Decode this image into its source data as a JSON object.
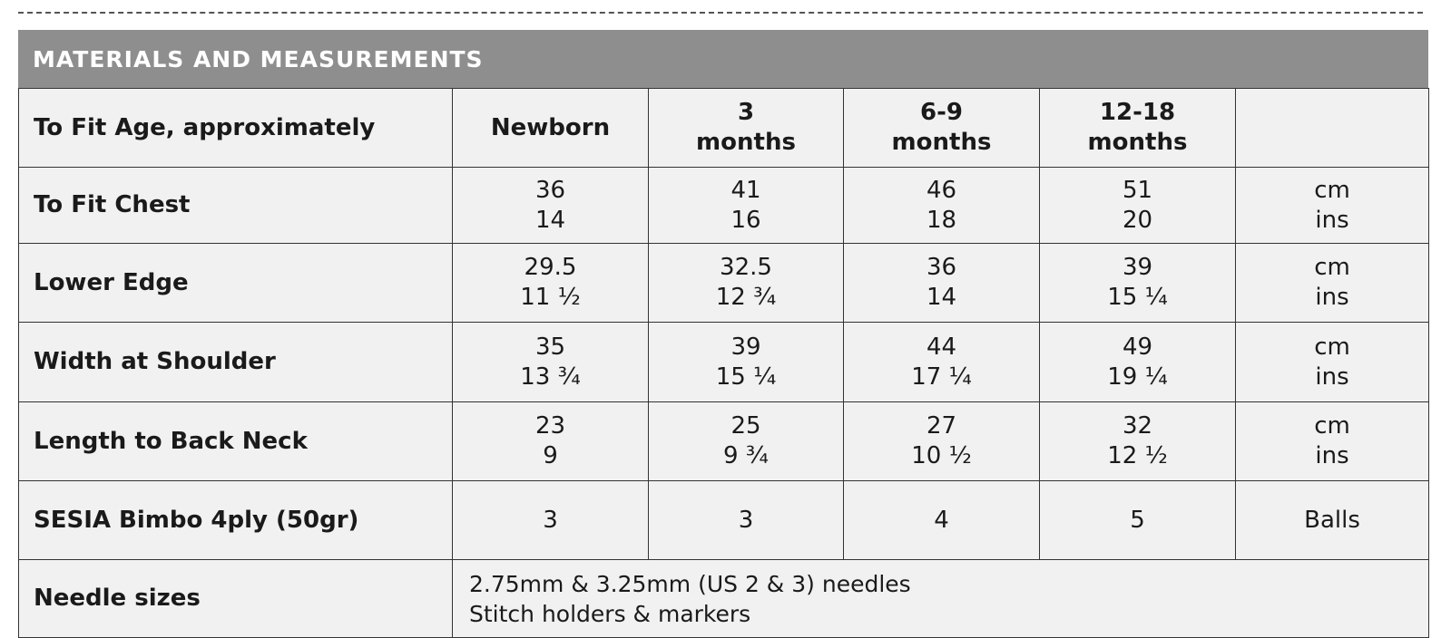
{
  "table": {
    "title": "MATERIALS AND MEASUREMENTS",
    "header": {
      "label": "To Fit Age, approximately",
      "sizes": [
        [
          "Newborn"
        ],
        [
          "3",
          "months"
        ],
        [
          "6-9",
          "months"
        ],
        [
          "12-18",
          "months"
        ]
      ]
    },
    "rows": [
      {
        "label": "To Fit Chest",
        "cells": [
          [
            "36",
            "14"
          ],
          [
            "41",
            "16"
          ],
          [
            "46",
            "18"
          ],
          [
            "51",
            "20"
          ]
        ],
        "units": [
          "cm",
          "ins"
        ]
      },
      {
        "label": "Lower Edge",
        "cells": [
          [
            "29.5",
            "11 ½"
          ],
          [
            "32.5",
            "12 ¾"
          ],
          [
            "36",
            "14"
          ],
          [
            "39",
            "15 ¼"
          ]
        ],
        "units": [
          "cm",
          "ins"
        ]
      },
      {
        "label": "Width at Shoulder",
        "cells": [
          [
            "35",
            "13 ¾"
          ],
          [
            "39",
            "15 ¼"
          ],
          [
            "44",
            "17 ¼"
          ],
          [
            "49",
            "19 ¼"
          ]
        ],
        "units": [
          "cm",
          "ins"
        ]
      },
      {
        "label": "Length to Back Neck",
        "cells": [
          [
            "23",
            "9"
          ],
          [
            "25",
            "9 ¾"
          ],
          [
            "27",
            "10 ½"
          ],
          [
            "32",
            "12 ½"
          ]
        ],
        "units": [
          "cm",
          "ins"
        ]
      },
      {
        "label": "SESIA Bimbo 4ply (50gr)",
        "cells": [
          [
            "3"
          ],
          [
            "3"
          ],
          [
            "4"
          ],
          [
            "5"
          ]
        ],
        "units": [
          "Balls"
        ]
      }
    ],
    "needles": {
      "label": "Needle sizes",
      "lines": [
        "2.75mm & 3.25mm (US 2 & 3) needles",
        "Stitch holders & markers"
      ]
    }
  }
}
